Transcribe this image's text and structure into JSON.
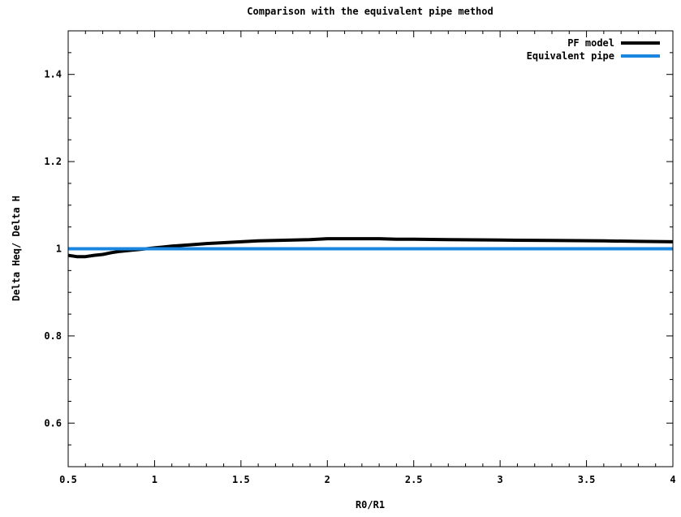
{
  "chart_data": {
    "type": "line",
    "title": "Comparison with the equivalent pipe method",
    "xlabel": "R0/R1",
    "ylabel": "Delta Heq/ Delta H",
    "xlim": [
      0.5,
      4
    ],
    "ylim": [
      0.5,
      1.5
    ],
    "xticks": [
      {
        "value": 0.5,
        "label": "0.5"
      },
      {
        "value": 1,
        "label": "1"
      },
      {
        "value": 1.5,
        "label": "1.5"
      },
      {
        "value": 2,
        "label": "2"
      },
      {
        "value": 2.5,
        "label": "2.5"
      },
      {
        "value": 3,
        "label": "3"
      },
      {
        "value": 3.5,
        "label": "3.5"
      },
      {
        "value": 4,
        "label": "4"
      }
    ],
    "yticks": [
      {
        "value": 0.6,
        "label": "0.6"
      },
      {
        "value": 0.8,
        "label": "0.8"
      },
      {
        "value": 1.0,
        "label": "1"
      },
      {
        "value": 1.2,
        "label": "1.2"
      },
      {
        "value": 1.4,
        "label": "1.4"
      }
    ],
    "minor_ticks": true,
    "grid": false,
    "legend_position": "top-right",
    "series": [
      {
        "name": "PF model",
        "color": "#000000",
        "x": [
          0.5,
          0.55,
          0.6,
          0.65,
          0.7,
          0.75,
          0.8,
          0.85,
          0.9,
          0.95,
          1.0,
          1.05,
          1.1,
          1.2,
          1.3,
          1.4,
          1.5,
          1.6,
          1.7,
          1.8,
          1.9,
          2.0,
          2.1,
          2.2,
          2.3,
          2.4,
          2.5,
          2.7,
          3.0,
          3.3,
          3.6,
          3.8,
          4.0
        ],
        "y": [
          0.985,
          0.982,
          0.982,
          0.985,
          0.987,
          0.991,
          0.994,
          0.996,
          0.998,
          1.0,
          1.002,
          1.004,
          1.006,
          1.009,
          1.012,
          1.014,
          1.016,
          1.018,
          1.019,
          1.02,
          1.021,
          1.023,
          1.023,
          1.023,
          1.023,
          1.022,
          1.022,
          1.021,
          1.02,
          1.019,
          1.018,
          1.017,
          1.016
        ]
      },
      {
        "name": "Equivalent pipe",
        "color": "#1b86e0",
        "x": [
          0.5,
          4.0
        ],
        "y": [
          1.0,
          1.0
        ]
      }
    ]
  }
}
